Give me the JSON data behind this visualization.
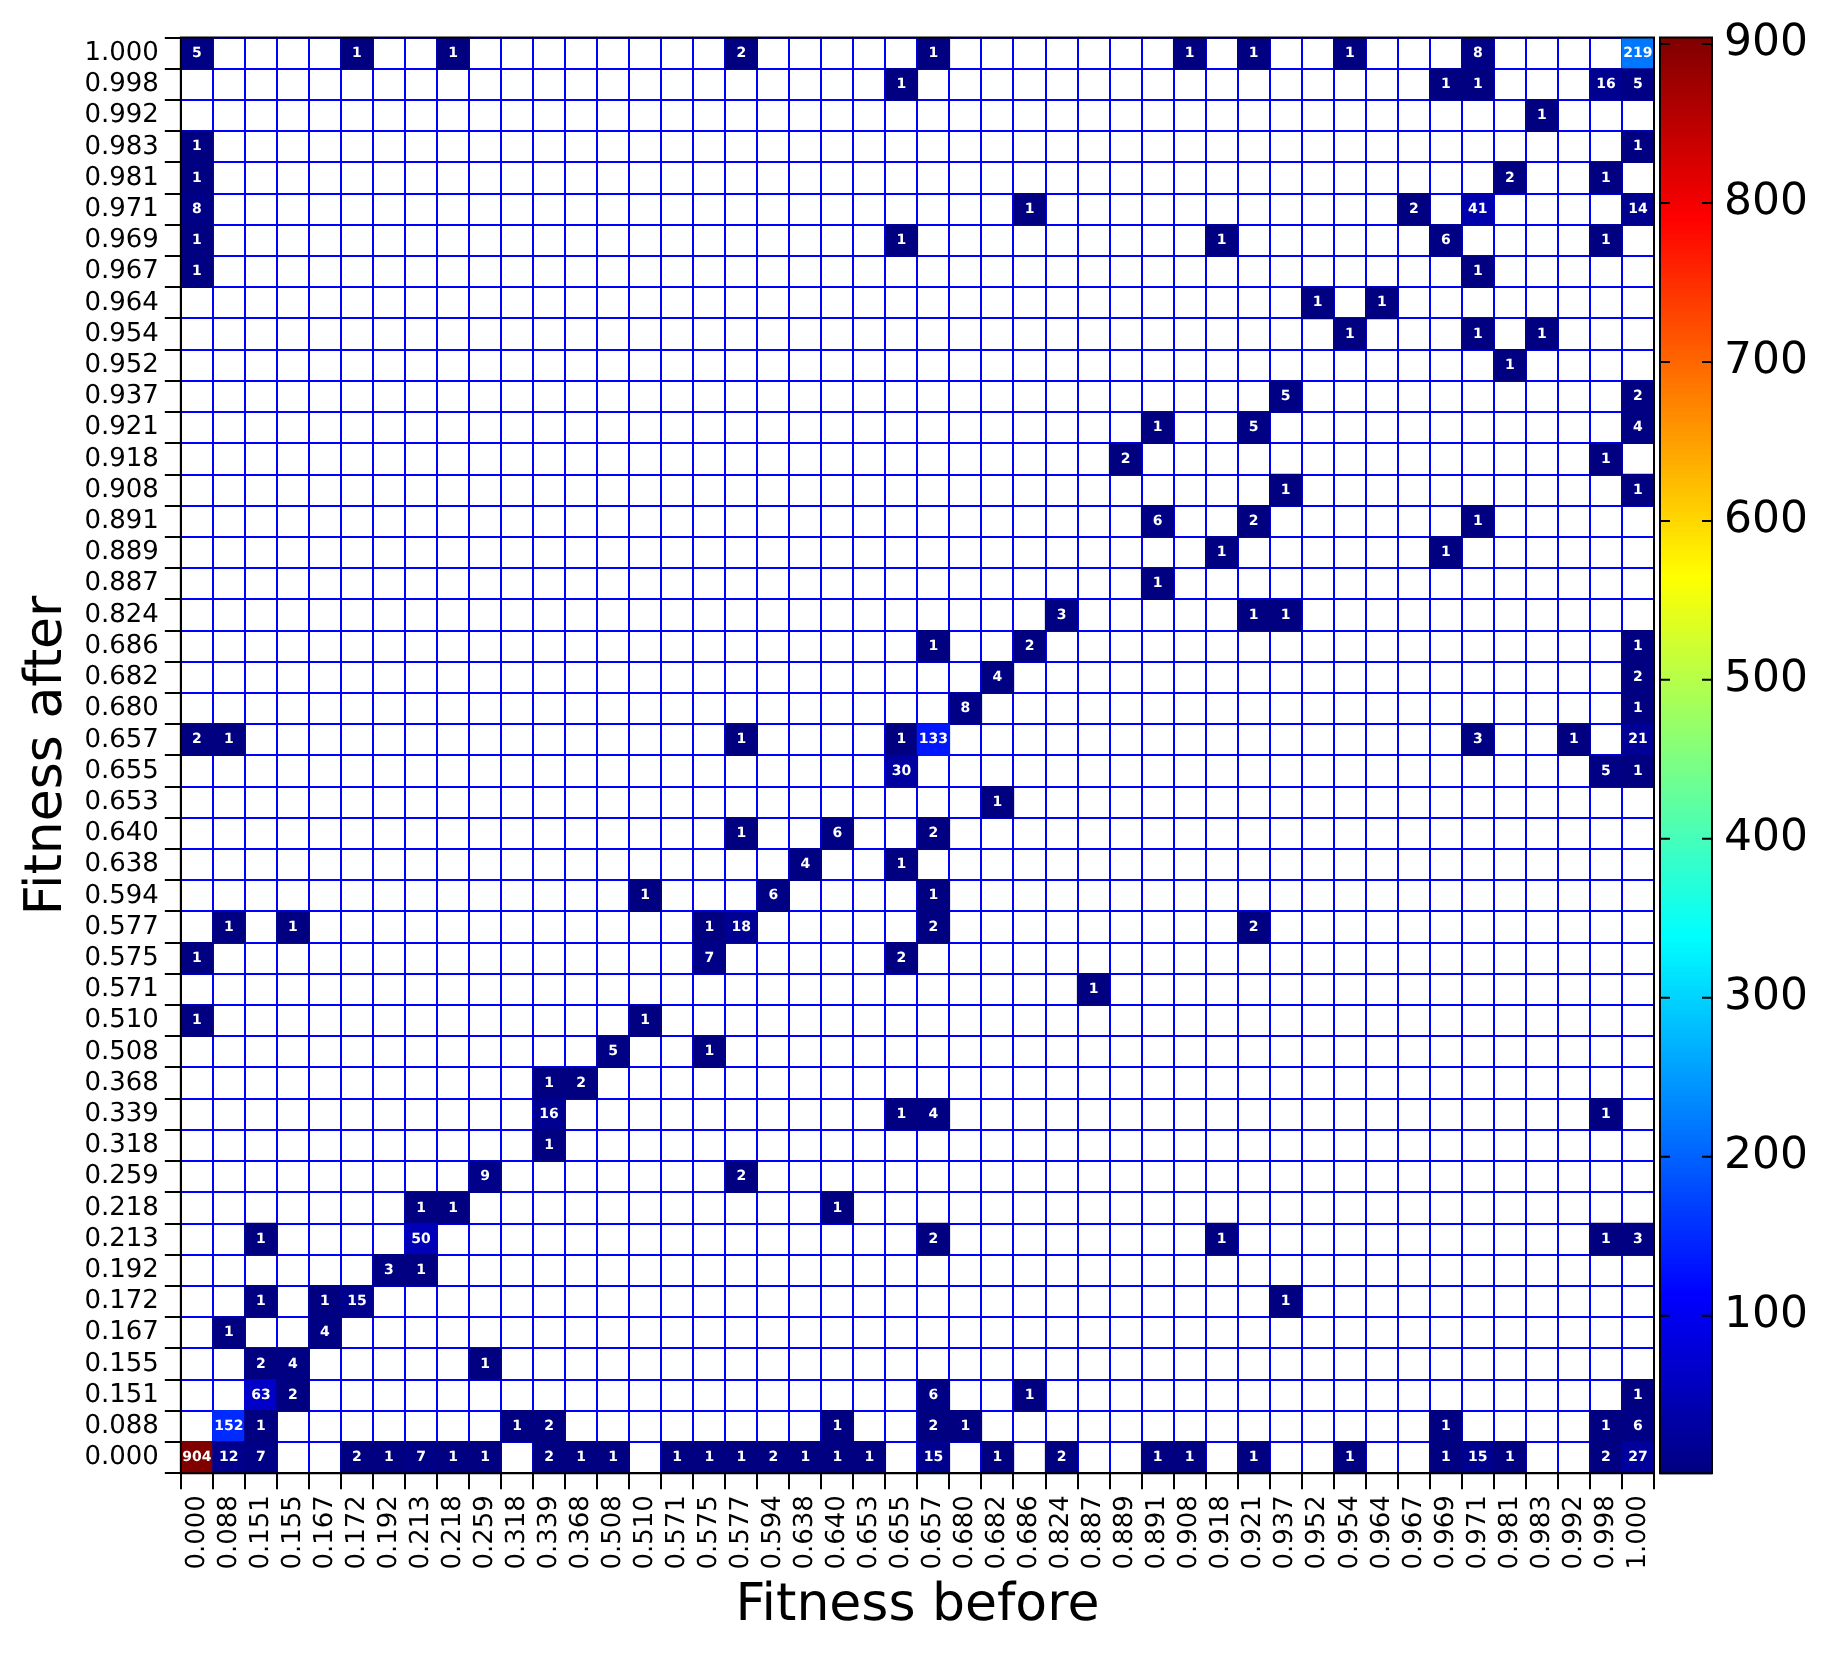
{
  "chart_data": {
    "type": "heatmap",
    "xlabel": "Fitness before",
    "ylabel": "Fitness after",
    "grid": true,
    "data_labels": true,
    "clim": [
      1,
      904
    ],
    "cticks": [
      100,
      200,
      300,
      400,
      500,
      600,
      700,
      800,
      900
    ],
    "categories": [
      "0.000",
      "0.088",
      "0.151",
      "0.155",
      "0.167",
      "0.172",
      "0.192",
      "0.213",
      "0.218",
      "0.259",
      "0.318",
      "0.339",
      "0.368",
      "0.508",
      "0.510",
      "0.571",
      "0.575",
      "0.577",
      "0.594",
      "0.638",
      "0.640",
      "0.653",
      "0.655",
      "0.657",
      "0.680",
      "0.682",
      "0.686",
      "0.824",
      "0.887",
      "0.889",
      "0.891",
      "0.908",
      "0.918",
      "0.921",
      "0.937",
      "0.952",
      "0.954",
      "0.964",
      "0.967",
      "0.969",
      "0.971",
      "0.981",
      "0.983",
      "0.992",
      "0.998",
      "1.000"
    ],
    "y_categories": [
      "1.000",
      "0.998",
      "0.992",
      "0.983",
      "0.981",
      "0.971",
      "0.969",
      "0.967",
      "0.964",
      "0.954",
      "0.952",
      "0.937",
      "0.921",
      "0.918",
      "0.908",
      "0.891",
      "0.889",
      "0.887",
      "0.824",
      "0.686",
      "0.682",
      "0.680",
      "0.657",
      "0.655",
      "0.653",
      "0.640",
      "0.638",
      "0.594",
      "0.577",
      "0.575",
      "0.571",
      "0.510",
      "0.508",
      "0.368",
      "0.339",
      "0.318",
      "0.259",
      "0.218",
      "0.213",
      "0.192",
      "0.172",
      "0.167",
      "0.155",
      "0.151",
      "0.088",
      "0.000"
    ],
    "cells": [
      [
        5,
        null,
        null,
        null,
        null,
        1,
        null,
        null,
        1,
        null,
        null,
        null,
        null,
        null,
        null,
        null,
        null,
        2,
        null,
        null,
        null,
        null,
        null,
        1,
        null,
        null,
        null,
        null,
        null,
        null,
        null,
        1,
        null,
        1,
        null,
        null,
        1,
        null,
        null,
        null,
        8,
        null,
        null,
        null,
        null,
        219
      ],
      [
        null,
        null,
        null,
        null,
        null,
        null,
        null,
        null,
        null,
        null,
        null,
        null,
        null,
        null,
        null,
        null,
        null,
        null,
        null,
        null,
        null,
        null,
        1,
        null,
        null,
        null,
        null,
        null,
        null,
        null,
        null,
        null,
        null,
        null,
        null,
        null,
        null,
        null,
        null,
        1,
        1,
        null,
        null,
        null,
        16,
        5
      ],
      [
        null,
        null,
        null,
        null,
        null,
        null,
        null,
        null,
        null,
        null,
        null,
        null,
        null,
        null,
        null,
        null,
        null,
        null,
        null,
        null,
        null,
        null,
        null,
        null,
        null,
        null,
        null,
        null,
        null,
        null,
        null,
        null,
        null,
        null,
        null,
        null,
        null,
        null,
        null,
        null,
        null,
        null,
        1,
        null,
        null,
        null
      ],
      [
        1,
        null,
        null,
        null,
        null,
        null,
        null,
        null,
        null,
        null,
        null,
        null,
        null,
        null,
        null,
        null,
        null,
        null,
        null,
        null,
        null,
        null,
        null,
        null,
        null,
        null,
        null,
        null,
        null,
        null,
        null,
        null,
        null,
        null,
        null,
        null,
        null,
        null,
        null,
        null,
        null,
        null,
        null,
        null,
        null,
        1
      ],
      [
        1,
        null,
        null,
        null,
        null,
        null,
        null,
        null,
        null,
        null,
        null,
        null,
        null,
        null,
        null,
        null,
        null,
        null,
        null,
        null,
        null,
        null,
        null,
        null,
        null,
        null,
        null,
        null,
        null,
        null,
        null,
        null,
        null,
        null,
        null,
        null,
        null,
        null,
        null,
        null,
        null,
        2,
        null,
        null,
        1,
        null
      ],
      [
        8,
        null,
        null,
        null,
        null,
        null,
        null,
        null,
        null,
        null,
        null,
        null,
        null,
        null,
        null,
        null,
        null,
        null,
        null,
        null,
        null,
        null,
        null,
        null,
        null,
        null,
        1,
        null,
        null,
        null,
        null,
        null,
        null,
        null,
        null,
        null,
        null,
        null,
        2,
        null,
        41,
        null,
        null,
        null,
        null,
        14
      ],
      [
        1,
        null,
        null,
        null,
        null,
        null,
        null,
        null,
        null,
        null,
        null,
        null,
        null,
        null,
        null,
        null,
        null,
        null,
        null,
        null,
        null,
        null,
        1,
        null,
        null,
        null,
        null,
        null,
        null,
        null,
        null,
        null,
        1,
        null,
        null,
        null,
        null,
        null,
        null,
        6,
        null,
        null,
        null,
        null,
        1,
        null
      ],
      [
        1,
        null,
        null,
        null,
        null,
        null,
        null,
        null,
        null,
        null,
        null,
        null,
        null,
        null,
        null,
        null,
        null,
        null,
        null,
        null,
        null,
        null,
        null,
        null,
        null,
        null,
        null,
        null,
        null,
        null,
        null,
        null,
        null,
        null,
        null,
        null,
        null,
        null,
        null,
        null,
        1,
        null,
        null,
        null,
        null,
        null
      ],
      [
        null,
        null,
        null,
        null,
        null,
        null,
        null,
        null,
        null,
        null,
        null,
        null,
        null,
        null,
        null,
        null,
        null,
        null,
        null,
        null,
        null,
        null,
        null,
        null,
        null,
        null,
        null,
        null,
        null,
        null,
        null,
        null,
        null,
        null,
        null,
        1,
        null,
        1,
        null,
        null,
        null,
        null,
        null,
        null,
        null,
        null
      ],
      [
        null,
        null,
        null,
        null,
        null,
        null,
        null,
        null,
        null,
        null,
        null,
        null,
        null,
        null,
        null,
        null,
        null,
        null,
        null,
        null,
        null,
        null,
        null,
        null,
        null,
        null,
        null,
        null,
        null,
        null,
        null,
        null,
        null,
        null,
        null,
        null,
        1,
        null,
        null,
        null,
        1,
        null,
        1,
        null,
        null,
        null
      ],
      [
        null,
        null,
        null,
        null,
        null,
        null,
        null,
        null,
        null,
        null,
        null,
        null,
        null,
        null,
        null,
        null,
        null,
        null,
        null,
        null,
        null,
        null,
        null,
        null,
        null,
        null,
        null,
        null,
        null,
        null,
        null,
        null,
        null,
        null,
        null,
        null,
        null,
        null,
        null,
        null,
        null,
        1,
        null,
        null,
        null,
        null
      ],
      [
        null,
        null,
        null,
        null,
        null,
        null,
        null,
        null,
        null,
        null,
        null,
        null,
        null,
        null,
        null,
        null,
        null,
        null,
        null,
        null,
        null,
        null,
        null,
        null,
        null,
        null,
        null,
        null,
        null,
        null,
        null,
        null,
        null,
        null,
        5,
        null,
        null,
        null,
        null,
        null,
        null,
        null,
        null,
        null,
        null,
        2
      ],
      [
        null,
        null,
        null,
        null,
        null,
        null,
        null,
        null,
        null,
        null,
        null,
        null,
        null,
        null,
        null,
        null,
        null,
        null,
        null,
        null,
        null,
        null,
        null,
        null,
        null,
        null,
        null,
        null,
        null,
        null,
        1,
        null,
        null,
        5,
        null,
        null,
        null,
        null,
        null,
        null,
        null,
        null,
        null,
        null,
        null,
        4
      ],
      [
        null,
        null,
        null,
        null,
        null,
        null,
        null,
        null,
        null,
        null,
        null,
        null,
        null,
        null,
        null,
        null,
        null,
        null,
        null,
        null,
        null,
        null,
        null,
        null,
        null,
        null,
        null,
        null,
        null,
        2,
        null,
        null,
        null,
        null,
        null,
        null,
        null,
        null,
        null,
        null,
        null,
        null,
        null,
        null,
        1,
        null
      ],
      [
        null,
        null,
        null,
        null,
        null,
        null,
        null,
        null,
        null,
        null,
        null,
        null,
        null,
        null,
        null,
        null,
        null,
        null,
        null,
        null,
        null,
        null,
        null,
        null,
        null,
        null,
        null,
        null,
        null,
        null,
        null,
        null,
        null,
        null,
        1,
        null,
        null,
        null,
        null,
        null,
        null,
        null,
        null,
        null,
        null,
        1
      ],
      [
        null,
        null,
        null,
        null,
        null,
        null,
        null,
        null,
        null,
        null,
        null,
        null,
        null,
        null,
        null,
        null,
        null,
        null,
        null,
        null,
        null,
        null,
        null,
        null,
        null,
        null,
        null,
        null,
        null,
        null,
        6,
        null,
        null,
        2,
        null,
        null,
        null,
        null,
        null,
        null,
        1,
        null,
        null,
        null,
        null,
        null
      ],
      [
        null,
        null,
        null,
        null,
        null,
        null,
        null,
        null,
        null,
        null,
        null,
        null,
        null,
        null,
        null,
        null,
        null,
        null,
        null,
        null,
        null,
        null,
        null,
        null,
        null,
        null,
        null,
        null,
        null,
        null,
        null,
        null,
        1,
        null,
        null,
        null,
        null,
        null,
        null,
        1,
        null,
        null,
        null,
        null,
        null,
        null
      ],
      [
        null,
        null,
        null,
        null,
        null,
        null,
        null,
        null,
        null,
        null,
        null,
        null,
        null,
        null,
        null,
        null,
        null,
        null,
        null,
        null,
        null,
        null,
        null,
        null,
        null,
        null,
        null,
        null,
        null,
        null,
        1,
        null,
        null,
        null,
        null,
        null,
        null,
        null,
        null,
        null,
        null,
        null,
        null,
        null,
        null,
        null
      ],
      [
        null,
        null,
        null,
        null,
        null,
        null,
        null,
        null,
        null,
        null,
        null,
        null,
        null,
        null,
        null,
        null,
        null,
        null,
        null,
        null,
        null,
        null,
        null,
        null,
        null,
        null,
        null,
        3,
        null,
        null,
        null,
        null,
        null,
        1,
        1,
        null,
        null,
        null,
        null,
        null,
        null,
        null,
        null,
        null,
        null,
        null
      ],
      [
        null,
        null,
        null,
        null,
        null,
        null,
        null,
        null,
        null,
        null,
        null,
        null,
        null,
        null,
        null,
        null,
        null,
        null,
        null,
        null,
        null,
        null,
        null,
        1,
        null,
        null,
        2,
        null,
        null,
        null,
        null,
        null,
        null,
        null,
        null,
        null,
        null,
        null,
        null,
        null,
        null,
        null,
        null,
        null,
        null,
        1
      ],
      [
        null,
        null,
        null,
        null,
        null,
        null,
        null,
        null,
        null,
        null,
        null,
        null,
        null,
        null,
        null,
        null,
        null,
        null,
        null,
        null,
        null,
        null,
        null,
        null,
        null,
        4,
        null,
        null,
        null,
        null,
        null,
        null,
        null,
        null,
        null,
        null,
        null,
        null,
        null,
        null,
        null,
        null,
        null,
        null,
        null,
        2
      ],
      [
        null,
        null,
        null,
        null,
        null,
        null,
        null,
        null,
        null,
        null,
        null,
        null,
        null,
        null,
        null,
        null,
        null,
        null,
        null,
        null,
        null,
        null,
        null,
        null,
        8,
        null,
        null,
        null,
        null,
        null,
        null,
        null,
        null,
        null,
        null,
        null,
        null,
        null,
        null,
        null,
        null,
        null,
        null,
        null,
        null,
        1
      ],
      [
        2,
        1,
        null,
        null,
        null,
        null,
        null,
        null,
        null,
        null,
        null,
        null,
        null,
        null,
        null,
        null,
        null,
        1,
        null,
        null,
        null,
        null,
        1,
        133,
        null,
        null,
        null,
        null,
        null,
        null,
        null,
        null,
        null,
        null,
        null,
        null,
        null,
        null,
        null,
        null,
        3,
        null,
        null,
        1,
        null,
        21
      ],
      [
        null,
        null,
        null,
        null,
        null,
        null,
        null,
        null,
        null,
        null,
        null,
        null,
        null,
        null,
        null,
        null,
        null,
        null,
        null,
        null,
        null,
        null,
        30,
        null,
        null,
        null,
        null,
        null,
        null,
        null,
        null,
        null,
        null,
        null,
        null,
        null,
        null,
        null,
        null,
        null,
        null,
        null,
        null,
        null,
        5,
        1
      ],
      [
        null,
        null,
        null,
        null,
        null,
        null,
        null,
        null,
        null,
        null,
        null,
        null,
        null,
        null,
        null,
        null,
        null,
        null,
        null,
        null,
        null,
        null,
        null,
        null,
        null,
        1,
        null,
        null,
        null,
        null,
        null,
        null,
        null,
        null,
        null,
        null,
        null,
        null,
        null,
        null,
        null,
        null,
        null,
        null,
        null,
        null
      ],
      [
        null,
        null,
        null,
        null,
        null,
        null,
        null,
        null,
        null,
        null,
        null,
        null,
        null,
        null,
        null,
        null,
        null,
        1,
        null,
        null,
        6,
        null,
        null,
        2,
        null,
        null,
        null,
        null,
        null,
        null,
        null,
        null,
        null,
        null,
        null,
        null,
        null,
        null,
        null,
        null,
        null,
        null,
        null,
        null,
        null,
        null
      ],
      [
        null,
        null,
        null,
        null,
        null,
        null,
        null,
        null,
        null,
        null,
        null,
        null,
        null,
        null,
        null,
        null,
        null,
        null,
        null,
        4,
        null,
        null,
        1,
        null,
        null,
        null,
        null,
        null,
        null,
        null,
        null,
        null,
        null,
        null,
        null,
        null,
        null,
        null,
        null,
        null,
        null,
        null,
        null,
        null,
        null,
        null
      ],
      [
        null,
        null,
        null,
        null,
        null,
        null,
        null,
        null,
        null,
        null,
        null,
        null,
        null,
        null,
        1,
        null,
        null,
        null,
        6,
        null,
        null,
        null,
        null,
        1,
        null,
        null,
        null,
        null,
        null,
        null,
        null,
        null,
        null,
        null,
        null,
        null,
        null,
        null,
        null,
        null,
        null,
        null,
        null,
        null,
        null,
        null
      ],
      [
        null,
        1,
        null,
        1,
        null,
        null,
        null,
        null,
        null,
        null,
        null,
        null,
        null,
        null,
        null,
        null,
        1,
        18,
        null,
        null,
        null,
        null,
        null,
        2,
        null,
        null,
        null,
        null,
        null,
        null,
        null,
        null,
        null,
        2,
        null,
        null,
        null,
        null,
        null,
        null,
        null,
        null,
        null,
        null,
        null,
        null
      ],
      [
        1,
        null,
        null,
        null,
        null,
        null,
        null,
        null,
        null,
        null,
        null,
        null,
        null,
        null,
        null,
        null,
        7,
        null,
        null,
        null,
        null,
        null,
        2,
        null,
        null,
        null,
        null,
        null,
        null,
        null,
        null,
        null,
        null,
        null,
        null,
        null,
        null,
        null,
        null,
        null,
        null,
        null,
        null,
        null,
        null,
        null
      ],
      [
        null,
        null,
        null,
        null,
        null,
        null,
        null,
        null,
        null,
        null,
        null,
        null,
        null,
        null,
        null,
        null,
        null,
        null,
        null,
        null,
        null,
        null,
        null,
        null,
        null,
        null,
        null,
        null,
        1,
        null,
        null,
        null,
        null,
        null,
        null,
        null,
        null,
        null,
        null,
        null,
        null,
        null,
        null,
        null,
        null,
        null
      ],
      [
        1,
        null,
        null,
        null,
        null,
        null,
        null,
        null,
        null,
        null,
        null,
        null,
        null,
        null,
        1,
        null,
        null,
        null,
        null,
        null,
        null,
        null,
        null,
        null,
        null,
        null,
        null,
        null,
        null,
        null,
        null,
        null,
        null,
        null,
        null,
        null,
        null,
        null,
        null,
        null,
        null,
        null,
        null,
        null,
        null,
        null
      ],
      [
        null,
        null,
        null,
        null,
        null,
        null,
        null,
        null,
        null,
        null,
        null,
        null,
        null,
        5,
        null,
        null,
        1,
        null,
        null,
        null,
        null,
        null,
        null,
        null,
        null,
        null,
        null,
        null,
        null,
        null,
        null,
        null,
        null,
        null,
        null,
        null,
        null,
        null,
        null,
        null,
        null,
        null,
        null,
        null,
        null,
        null
      ],
      [
        null,
        null,
        null,
        null,
        null,
        null,
        null,
        null,
        null,
        null,
        null,
        1,
        2,
        null,
        null,
        null,
        null,
        null,
        null,
        null,
        null,
        null,
        null,
        null,
        null,
        null,
        null,
        null,
        null,
        null,
        null,
        null,
        null,
        null,
        null,
        null,
        null,
        null,
        null,
        null,
        null,
        null,
        null,
        null,
        null,
        null
      ],
      [
        null,
        null,
        null,
        null,
        null,
        null,
        null,
        null,
        null,
        null,
        null,
        16,
        null,
        null,
        null,
        null,
        null,
        null,
        null,
        null,
        null,
        null,
        1,
        4,
        null,
        null,
        null,
        null,
        null,
        null,
        null,
        null,
        null,
        null,
        null,
        null,
        null,
        null,
        null,
        null,
        null,
        null,
        null,
        null,
        1,
        null
      ],
      [
        null,
        null,
        null,
        null,
        null,
        null,
        null,
        null,
        null,
        null,
        null,
        1,
        null,
        null,
        null,
        null,
        null,
        null,
        null,
        null,
        null,
        null,
        null,
        null,
        null,
        null,
        null,
        null,
        null,
        null,
        null,
        null,
        null,
        null,
        null,
        null,
        null,
        null,
        null,
        null,
        null,
        null,
        null,
        null,
        null,
        null
      ],
      [
        null,
        null,
        null,
        null,
        null,
        null,
        null,
        null,
        null,
        9,
        null,
        null,
        null,
        null,
        null,
        null,
        null,
        2,
        null,
        null,
        null,
        null,
        null,
        null,
        null,
        null,
        null,
        null,
        null,
        null,
        null,
        null,
        null,
        null,
        null,
        null,
        null,
        null,
        null,
        null,
        null,
        null,
        null,
        null,
        null,
        null
      ],
      [
        null,
        null,
        null,
        null,
        null,
        null,
        null,
        1,
        1,
        null,
        null,
        null,
        null,
        null,
        null,
        null,
        null,
        null,
        null,
        null,
        1,
        null,
        null,
        null,
        null,
        null,
        null,
        null,
        null,
        null,
        null,
        null,
        null,
        null,
        null,
        null,
        null,
        null,
        null,
        null,
        null,
        null,
        null,
        null,
        null,
        null
      ],
      [
        null,
        null,
        1,
        null,
        null,
        null,
        null,
        50,
        null,
        null,
        null,
        null,
        null,
        null,
        null,
        null,
        null,
        null,
        null,
        null,
        null,
        null,
        null,
        2,
        null,
        null,
        null,
        null,
        null,
        null,
        null,
        null,
        1,
        null,
        null,
        null,
        null,
        null,
        null,
        null,
        null,
        null,
        null,
        null,
        1,
        3
      ],
      [
        null,
        null,
        null,
        null,
        null,
        null,
        3,
        1,
        null,
        null,
        null,
        null,
        null,
        null,
        null,
        null,
        null,
        null,
        null,
        null,
        null,
        null,
        null,
        null,
        null,
        null,
        null,
        null,
        null,
        null,
        null,
        null,
        null,
        null,
        null,
        null,
        null,
        null,
        null,
        null,
        null,
        null,
        null,
        null,
        null,
        null
      ],
      [
        null,
        null,
        1,
        null,
        1,
        15,
        null,
        null,
        null,
        null,
        null,
        null,
        null,
        null,
        null,
        null,
        null,
        null,
        null,
        null,
        null,
        null,
        null,
        null,
        null,
        null,
        null,
        null,
        null,
        null,
        null,
        null,
        null,
        null,
        1,
        null,
        null,
        null,
        null,
        null,
        null,
        null,
        null,
        null,
        null,
        null
      ],
      [
        null,
        1,
        null,
        null,
        4,
        null,
        null,
        null,
        null,
        null,
        null,
        null,
        null,
        null,
        null,
        null,
        null,
        null,
        null,
        null,
        null,
        null,
        null,
        null,
        null,
        null,
        null,
        null,
        null,
        null,
        null,
        null,
        null,
        null,
        null,
        null,
        null,
        null,
        null,
        null,
        null,
        null,
        null,
        null,
        null,
        null
      ],
      [
        null,
        null,
        2,
        4,
        null,
        null,
        null,
        null,
        null,
        1,
        null,
        null,
        null,
        null,
        null,
        null,
        null,
        null,
        null,
        null,
        null,
        null,
        null,
        null,
        null,
        null,
        null,
        null,
        null,
        null,
        null,
        null,
        null,
        null,
        null,
        null,
        null,
        null,
        null,
        null,
        null,
        null,
        null,
        null,
        null,
        null
      ],
      [
        null,
        null,
        63,
        2,
        null,
        null,
        null,
        null,
        null,
        null,
        null,
        null,
        null,
        null,
        null,
        null,
        null,
        null,
        null,
        null,
        null,
        null,
        null,
        6,
        null,
        null,
        1,
        null,
        null,
        null,
        null,
        null,
        null,
        null,
        null,
        null,
        null,
        null,
        null,
        null,
        null,
        null,
        null,
        null,
        null,
        1
      ],
      [
        null,
        152,
        1,
        null,
        null,
        null,
        null,
        null,
        null,
        null,
        1,
        2,
        null,
        null,
        null,
        null,
        null,
        null,
        null,
        null,
        1,
        null,
        null,
        2,
        1,
        null,
        null,
        null,
        null,
        null,
        null,
        null,
        null,
        null,
        null,
        null,
        null,
        null,
        null,
        1,
        null,
        null,
        null,
        null,
        1,
        6
      ],
      [
        904,
        12,
        7,
        null,
        null,
        2,
        1,
        7,
        1,
        1,
        null,
        2,
        1,
        1,
        null,
        1,
        1,
        1,
        2,
        1,
        1,
        1,
        null,
        15,
        null,
        1,
        null,
        2,
        null,
        null,
        1,
        1,
        null,
        1,
        null,
        null,
        1,
        null,
        null,
        1,
        15,
        1,
        null,
        null,
        2,
        27
      ]
    ]
  }
}
